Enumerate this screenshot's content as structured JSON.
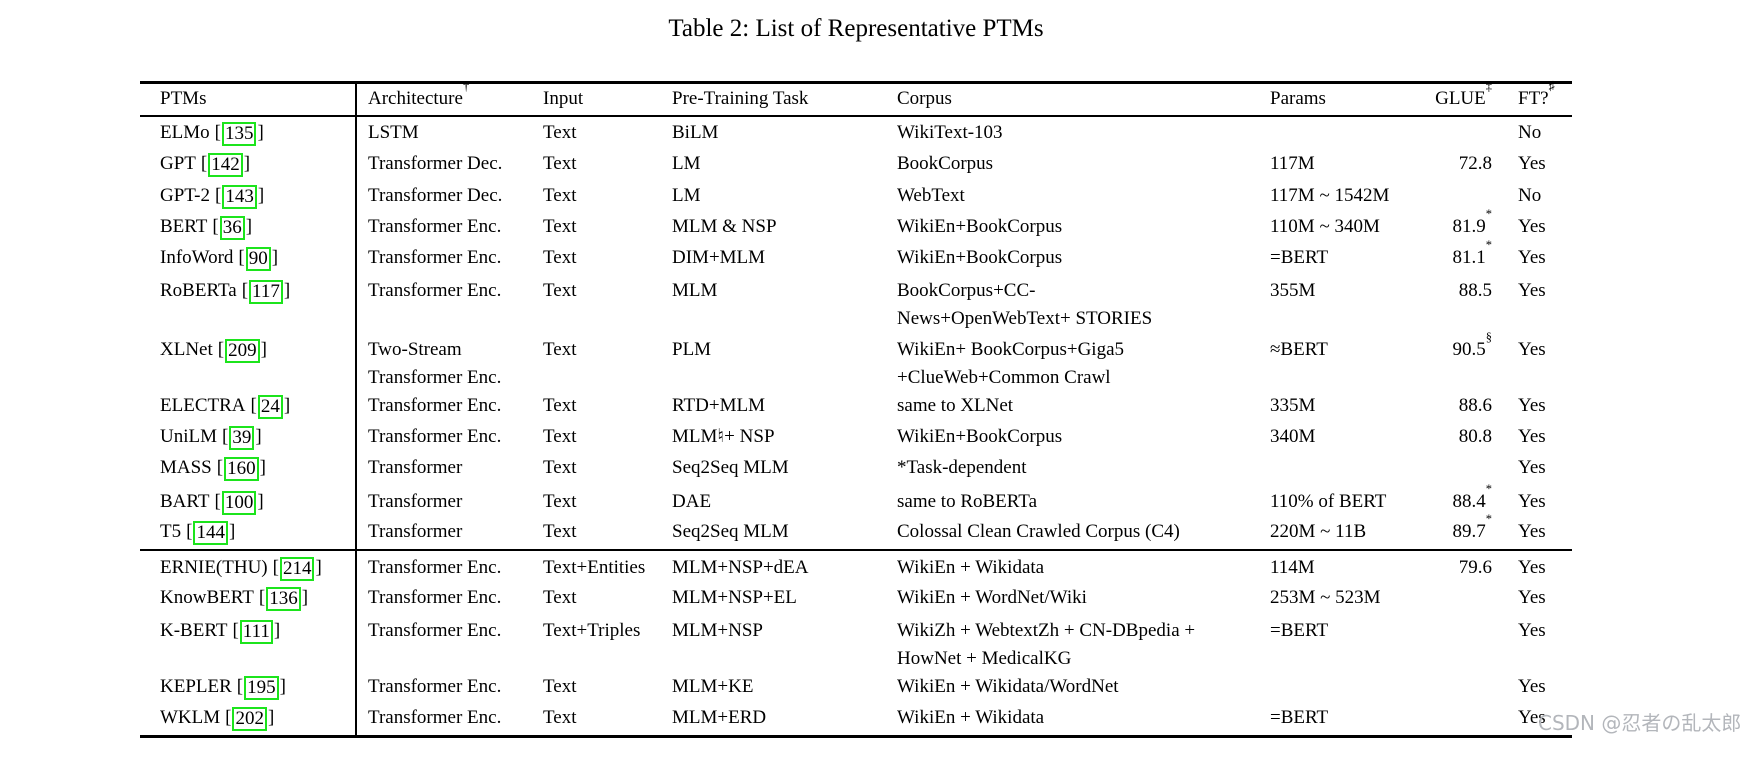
{
  "title": "Table 2: List of Representative PTMs",
  "watermark": "CSDN @忍者の乱太郎",
  "colors": {
    "text": "#000000",
    "cite_box": "#1ce41c",
    "watermark": "#b3b6bb"
  },
  "table": {
    "cite_open": "[",
    "cite_close": "]",
    "headers": {
      "ptms": "PTMs",
      "architecture": "Architecture",
      "architecture_sup": "†",
      "input": "Input",
      "task": "Pre-Training Task",
      "corpus": "Corpus",
      "params": "Params",
      "glue": "GLUE",
      "glue_sup": "‡",
      "ft": "FT?",
      "ft_sup": "♯"
    },
    "rows": [
      {
        "name": "ELMo",
        "cite": "135",
        "arch1": "LSTM",
        "arch2": "",
        "input": "Text",
        "task": "BiLM",
        "corpus1": "WikiText-103",
        "corpus2": "",
        "params": "",
        "glue": "",
        "glue_sup": "",
        "ft": "No"
      },
      {
        "name": "GPT",
        "cite": "142",
        "arch1": "Transformer Dec.",
        "arch2": "",
        "input": "Text",
        "task": "LM",
        "corpus1": "BookCorpus",
        "corpus2": "",
        "params": "117M",
        "glue": "72.8",
        "glue_sup": "",
        "ft": "Yes"
      },
      {
        "name": "GPT-2",
        "cite": "143",
        "arch1": "Transformer Dec.",
        "arch2": "",
        "input": "Text",
        "task": "LM",
        "corpus1": "WebText",
        "corpus2": "",
        "params": "117M ~ 1542M",
        "glue": "",
        "glue_sup": "",
        "ft": "No"
      },
      {
        "name": "BERT",
        "cite": "36",
        "arch1": "Transformer Enc.",
        "arch2": "",
        "input": "Text",
        "task": "MLM & NSP",
        "corpus1": "WikiEn+BookCorpus",
        "corpus2": "",
        "params": "110M ~ 340M",
        "glue": "81.9",
        "glue_sup": "*",
        "ft": "Yes"
      },
      {
        "name": "InfoWord",
        "cite": "90",
        "arch1": "Transformer Enc.",
        "arch2": "",
        "input": "Text",
        "task": "DIM+MLM",
        "corpus1": "WikiEn+BookCorpus",
        "corpus2": "",
        "params": "=BERT",
        "glue": "81.1",
        "glue_sup": "*",
        "ft": "Yes"
      },
      {
        "name": "RoBERTa",
        "cite": "117",
        "arch1": "Transformer Enc.",
        "arch2": "",
        "input": "Text",
        "task": "MLM",
        "corpus1": "BookCorpus+CC-",
        "corpus2": "News+OpenWebText+ STORIES",
        "params": "355M",
        "glue": "88.5",
        "glue_sup": "",
        "ft": "Yes"
      },
      {
        "name": "XLNet",
        "cite": "209",
        "arch1": "Two-Stream",
        "arch2": "Transformer Enc.",
        "input": "Text",
        "task": "PLM",
        "corpus1": "WikiEn+ BookCorpus+Giga5",
        "corpus2": "+ClueWeb+Common Crawl",
        "params": "≈BERT",
        "glue": "90.5",
        "glue_sup": "§",
        "ft": "Yes"
      },
      {
        "name": "ELECTRA",
        "cite": "24",
        "arch1": "Transformer Enc.",
        "arch2": "",
        "input": "Text",
        "task": "RTD+MLM",
        "corpus1": "same to XLNet",
        "corpus2": "",
        "params": "335M",
        "glue": "88.6",
        "glue_sup": "",
        "ft": "Yes"
      },
      {
        "name": "UniLM",
        "cite": "39",
        "arch1": "Transformer Enc.",
        "arch2": "",
        "input": "Text",
        "task": "MLM♮+ NSP",
        "corpus1": "WikiEn+BookCorpus",
        "corpus2": "",
        "params": "340M",
        "glue": "80.8",
        "glue_sup": "",
        "ft": "Yes"
      },
      {
        "name": "MASS",
        "cite": "160",
        "arch1": "Transformer",
        "arch2": "",
        "input": "Text",
        "task": "Seq2Seq MLM",
        "corpus1": "*Task-dependent",
        "corpus2": "",
        "params": "",
        "glue": "",
        "glue_sup": "",
        "ft": "Yes"
      },
      {
        "name": "BART",
        "cite": "100",
        "arch1": "Transformer",
        "arch2": "",
        "input": "Text",
        "task": "DAE",
        "corpus1": "same to RoBERTa",
        "corpus2": "",
        "params": "110% of BERT",
        "glue": "88.4",
        "glue_sup": "*",
        "ft": "Yes"
      },
      {
        "name": "T5",
        "cite": "144",
        "arch1": "Transformer",
        "arch2": "",
        "input": "Text",
        "task": "Seq2Seq MLM",
        "corpus1": "Colossal Clean Crawled Corpus (C4)",
        "corpus2": "",
        "params": "220M ~ 11B",
        "glue": "89.7",
        "glue_sup": "*",
        "ft": "Yes"
      },
      {
        "name": "ERNIE(THU)",
        "cite": "214",
        "arch1": "Transformer Enc.",
        "arch2": "",
        "input": "Text+Entities",
        "task": "MLM+NSP+dEA",
        "corpus1": "WikiEn + Wikidata",
        "corpus2": "",
        "params": "114M",
        "glue": "79.6",
        "glue_sup": "",
        "ft": "Yes"
      },
      {
        "name": "KnowBERT",
        "cite": "136",
        "arch1": "Transformer Enc.",
        "arch2": "",
        "input": "Text",
        "task": "MLM+NSP+EL",
        "corpus1": "WikiEn + WordNet/Wiki",
        "corpus2": "",
        "params": "253M ~ 523M",
        "glue": "",
        "glue_sup": "",
        "ft": "Yes"
      },
      {
        "name": "K-BERT",
        "cite": "111",
        "arch1": "Transformer Enc.",
        "arch2": "",
        "input": "Text+Triples",
        "task": "MLM+NSP",
        "corpus1": "WikiZh + WebtextZh + CN-DBpedia +",
        "corpus2": "HowNet + MedicalKG",
        "params": "=BERT",
        "glue": "",
        "glue_sup": "",
        "ft": "Yes"
      },
      {
        "name": "KEPLER",
        "cite": "195",
        "arch1": "Transformer Enc.",
        "arch2": "",
        "input": "Text",
        "task": "MLM+KE",
        "corpus1": "WikiEn + Wikidata/WordNet",
        "corpus2": "",
        "params": "",
        "glue": "",
        "glue_sup": "",
        "ft": "Yes"
      },
      {
        "name": "WKLM",
        "cite": "202",
        "arch1": "Transformer Enc.",
        "arch2": "",
        "input": "Text",
        "task": "MLM+ERD",
        "corpus1": "WikiEn + Wikidata",
        "corpus2": "",
        "params": "=BERT",
        "glue": "",
        "glue_sup": "",
        "ft": "Yes"
      }
    ]
  }
}
